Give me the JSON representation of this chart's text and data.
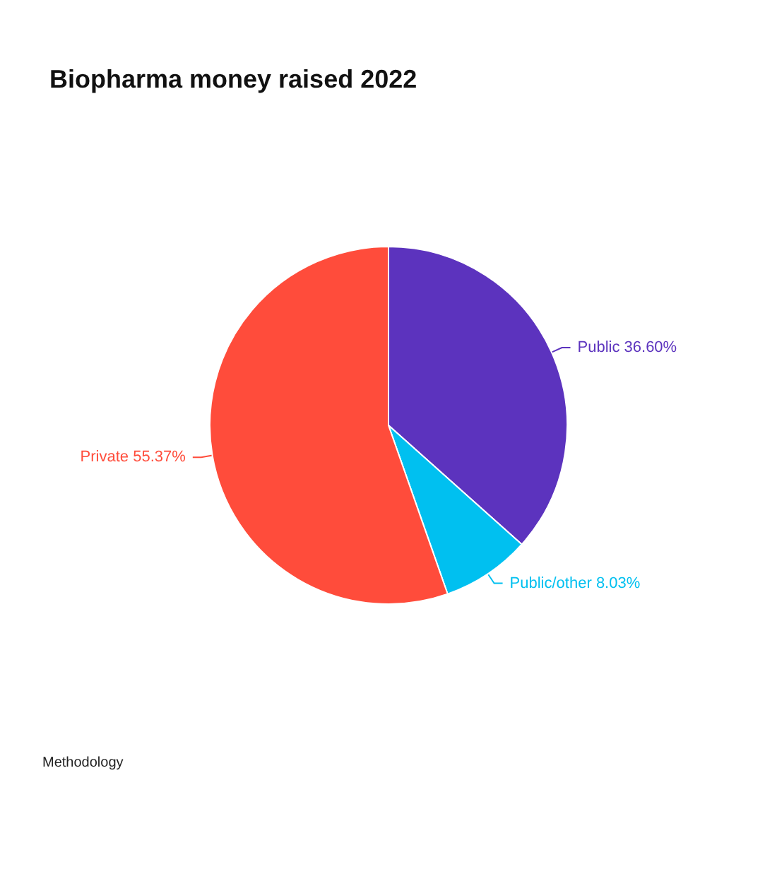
{
  "chart_data": {
    "type": "pie",
    "title": "Biopharma money raised 2022",
    "categories": [
      "Public",
      "Public/other",
      "Private"
    ],
    "values": [
      36.6,
      8.03,
      55.37
    ],
    "colors": [
      "#5c33be",
      "#00c0f0",
      "#ff4c3b"
    ],
    "value_labels": [
      "36.60%",
      "8.03%",
      "55.37%"
    ],
    "annotations": [
      "Methodology"
    ]
  }
}
